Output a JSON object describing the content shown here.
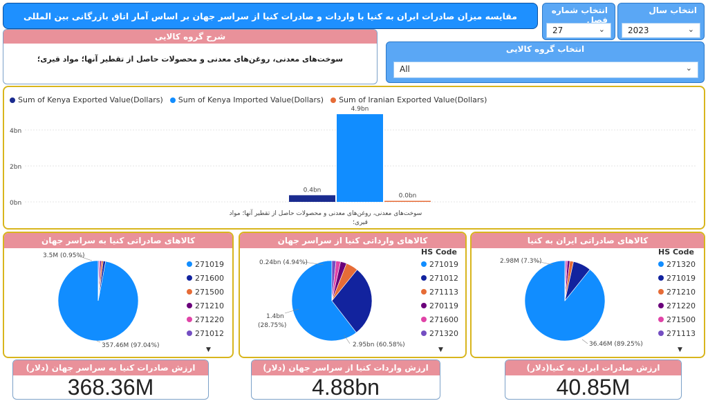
{
  "header": {
    "title": "مقایسه میزان صادرات ایران به کنیا با واردات و صادرات کنیا از سراسر جهان بر اساس آمار اتاق بازرگانی بین المللی"
  },
  "slicers": {
    "year": {
      "label": "انتخاب سال",
      "value": "2023"
    },
    "chapter": {
      "label": "انتخاب شماره فصل",
      "value": "27"
    },
    "group": {
      "label": "انتخاب گروه کالایی",
      "value": "All"
    }
  },
  "description": {
    "title": "شرح گروه کالایی",
    "text": "سوخت‌های معدنی، روغن‌های معدنی و محصولات حاصل از تقطیر آنها؛ مواد قیری؛"
  },
  "colors": {
    "dark_blue": "#1a2b8f",
    "light_blue": "#118dff",
    "orange": "#e66c37",
    "accent_pink": "#e9919a",
    "gold": "#d8b51c"
  },
  "bar_chart_legend": [
    "Sum of Kenya Exported Value(Dollars)",
    "Sum of Kenya Imported Value(Dollars)",
    "Sum of Iranian Exported Value(Dollars)"
  ],
  "bar_chart_ticks": [
    "4bn",
    "2bn",
    "0bn"
  ],
  "bar_chart_category": [
    "سوخت‌های معدنی، روغن‌های معدنی و محصولات حاصل از تقطیر آنها؛ مواد",
    "قیری؛"
  ],
  "bar_chart_data_labels": [
    "0.4bn",
    "4.9bn",
    "0.0bn"
  ],
  "pies": [
    {
      "title": "کالاهای صادراتی کنیا به سراسر جهان",
      "legend_title": "",
      "codes": [
        "271019",
        "271600",
        "271500",
        "271210",
        "271220",
        "271012"
      ],
      "labels": [
        "3.5M (0.95%)",
        "357.46M (97.04%)"
      ]
    },
    {
      "title": "کالاهای وارداتی کنیا از سراسر جهان",
      "legend_title": "HS Code",
      "codes": [
        "271019",
        "271012",
        "271113",
        "270119",
        "271600",
        "271320"
      ],
      "labels": [
        "0.24bn (4.94%)",
        "1.4bn",
        "(28.75%)",
        "2.95bn (60.58%)"
      ]
    },
    {
      "title": "کالاهای صادراتی ایران به کنیا",
      "legend_title": "HS Code",
      "codes": [
        "271320",
        "271019",
        "271210",
        "271220",
        "271500",
        "271113"
      ],
      "labels": [
        "2.98M (7.3%)",
        "36.46M (89.25%)"
      ]
    }
  ],
  "legend_colors": [
    "#118dff",
    "#12239e",
    "#e66c37",
    "#6b007b",
    "#e044a7",
    "#744ec2"
  ],
  "kpis": [
    {
      "title": "ارزش صادرات کنیا به سراسر جهان (دلار)",
      "value": "368.36M"
    },
    {
      "title": "ارزش واردات کنیا از سراسر جهان (دلار)",
      "value": "4.88bn"
    },
    {
      "title": "ارزش صادرات ایران به کنیا(دلار)",
      "value": "40.85M"
    }
  ],
  "chart_data": [
    {
      "type": "bar",
      "categories": [
        "سوخت‌های معدنی، روغن‌های معدنی و محصولات حاصل از تقطیر آنها؛ مواد قیری؛"
      ],
      "series": [
        {
          "name": "Sum of Kenya Exported Value(Dollars)",
          "values": [
            0.37
          ]
        },
        {
          "name": "Sum of Kenya Imported Value(Dollars)",
          "values": [
            4.88
          ]
        },
        {
          "name": "Sum of Iranian Exported Value(Dollars)",
          "values": [
            0.04
          ]
        }
      ],
      "ylabel": "",
      "unit": "bn",
      "ylim": [
        0,
        5
      ],
      "grid": true,
      "legend": "top-left"
    },
    {
      "type": "pie",
      "title": "کالاهای صادراتی کنیا به سراسر جهان",
      "values": [
        {
          "label": "271019",
          "value": 357.46
        },
        {
          "label": "271600",
          "value": 3.5
        },
        {
          "label": "271500",
          "value": 2.6
        },
        {
          "label": "271210",
          "value": 2.0
        },
        {
          "label": "271220",
          "value": 1.6
        },
        {
          "label": "271012",
          "value": 1.2
        }
      ]
    },
    {
      "type": "pie",
      "title": "کالاهای وارداتی کنیا از سراسر جهان",
      "values": [
        {
          "label": "271019",
          "value": 2.95
        },
        {
          "label": "271012",
          "value": 1.4
        },
        {
          "label": "271113",
          "value": 0.24
        },
        {
          "label": "270119",
          "value": 0.12
        },
        {
          "label": "271600",
          "value": 0.09
        },
        {
          "label": "271320",
          "value": 0.08
        }
      ]
    },
    {
      "type": "pie",
      "title": "کالاهای صادراتی ایران به کنیا",
      "values": [
        {
          "label": "271320",
          "value": 36.46
        },
        {
          "label": "271019",
          "value": 2.98
        },
        {
          "label": "271210",
          "value": 0.6
        },
        {
          "label": "271220",
          "value": 0.4
        },
        {
          "label": "271500",
          "value": 0.25
        },
        {
          "label": "271113",
          "value": 0.16
        }
      ]
    }
  ]
}
